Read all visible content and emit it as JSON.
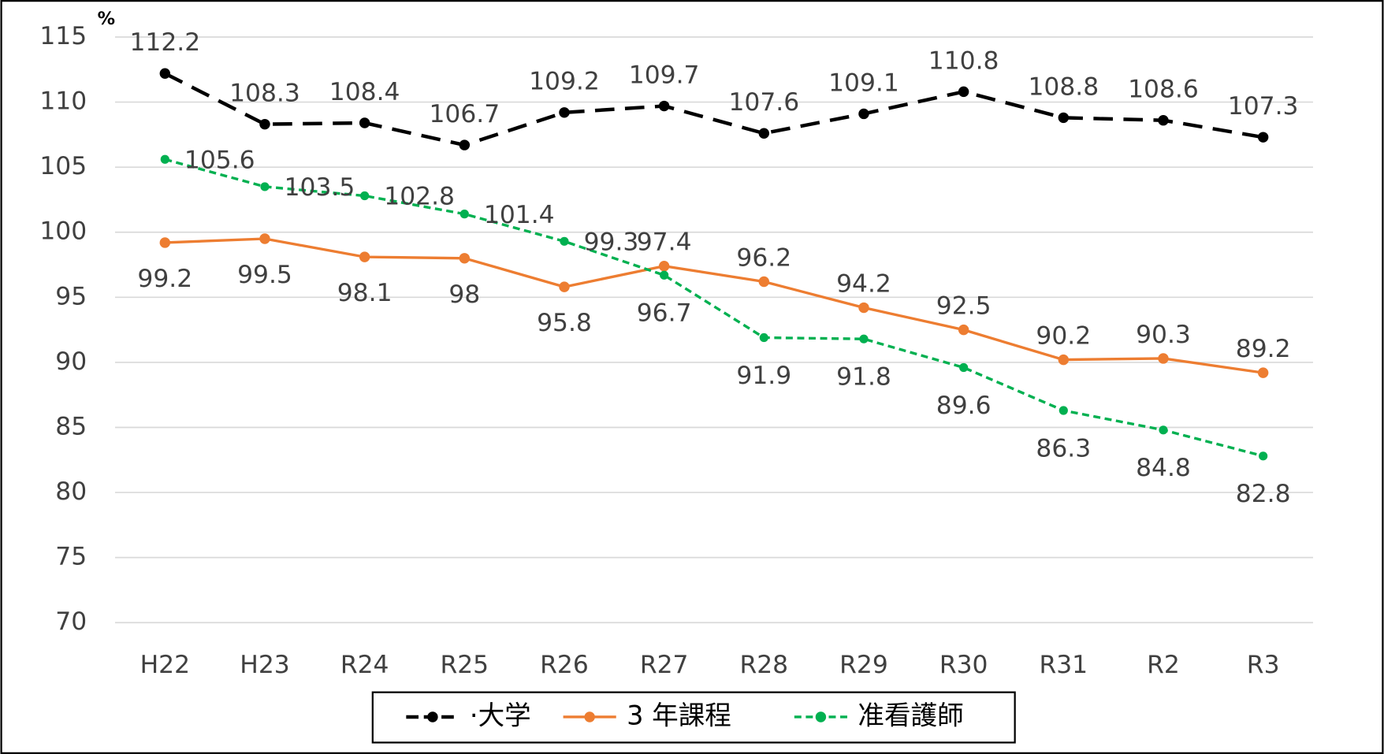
{
  "chart_data": {
    "type": "line",
    "y_label": "%",
    "categories": [
      "H22",
      "H23",
      "R24",
      "R25",
      "R26",
      "R27",
      "R28",
      "R29",
      "R30",
      "R31",
      "R2",
      "R3"
    ],
    "series": [
      {
        "name": "·大学",
        "color": "#000000",
        "values": [
          112.2,
          108.3,
          108.4,
          106.7,
          109.2,
          109.7,
          107.6,
          109.1,
          110.8,
          108.8,
          108.6,
          107.3
        ]
      },
      {
        "name": "3 年課程",
        "color": "#ed7d31",
        "values": [
          99.2,
          99.5,
          98.1,
          98,
          95.8,
          97.4,
          96.2,
          94.2,
          92.5,
          90.2,
          90.3,
          89.2
        ]
      },
      {
        "name": "准看護師",
        "color": "#00b050",
        "values": [
          105.6,
          103.5,
          102.8,
          101.4,
          99.3,
          96.7,
          91.9,
          91.8,
          89.6,
          86.3,
          84.8,
          82.8
        ]
      }
    ],
    "ylim": [
      70,
      115
    ],
    "yticks": [
      70,
      75,
      80,
      85,
      90,
      95,
      100,
      105,
      110,
      115
    ],
    "grid": true
  }
}
